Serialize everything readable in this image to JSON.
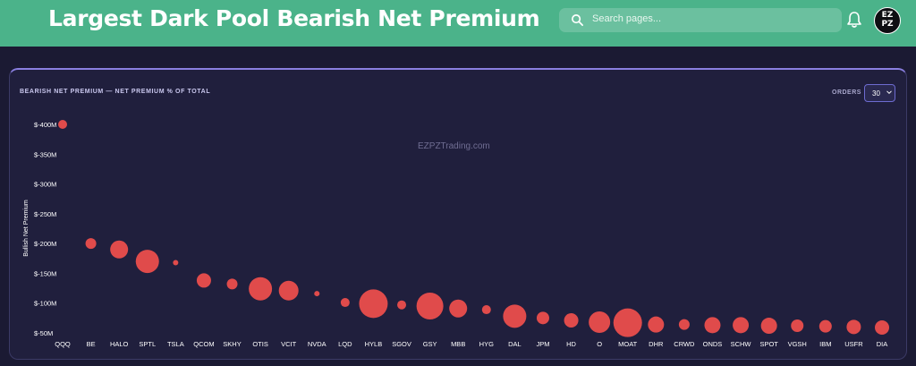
{
  "header": {
    "title": "Largest Dark Pool Bearish Net Premium",
    "search_placeholder": "Search pages...",
    "avatar_text": "EZ PZ"
  },
  "card": {
    "title": "BEARISH NET PREMIUM — NET PREMIUM % OF TOTAL",
    "orders_label": "ORDERS",
    "orders_value": "30",
    "watermark": "EZPZTrading.com"
  },
  "colors": {
    "header": "#4bb38a",
    "background": "#1b1a33",
    "card": "#201f3d",
    "bubble": "#e04b4b"
  },
  "chart_data": {
    "type": "scatter",
    "ylabel": "Bullish Net Premium",
    "y_ticks": [
      "$-400M",
      "$-350M",
      "$-300M",
      "$-250M",
      "$-200M",
      "$-150M",
      "$-100M",
      "$-50M"
    ],
    "y_tick_values": [
      -400,
      -350,
      -300,
      -250,
      -200,
      -150,
      -100,
      -50
    ],
    "ylim": [
      -400,
      -50
    ],
    "categories": [
      "QQQ",
      "BE",
      "HALO",
      "SPTL",
      "TSLA",
      "QCOM",
      "SKHY",
      "OTIS",
      "VCIT",
      "NVDA",
      "LQD",
      "HYLB",
      "SGOV",
      "GSY",
      "MBB",
      "HYG",
      "DAL",
      "JPM",
      "HD",
      "O",
      "MOAT",
      "DHR",
      "CRWD",
      "ONDS",
      "SCHW",
      "SPOT",
      "VGSH",
      "IBM",
      "USFR",
      "DIA"
    ],
    "values": [
      -400,
      -200,
      -190,
      -170,
      -168,
      -138,
      -132,
      -124,
      -121,
      -116,
      -101,
      -99,
      -97,
      -95,
      -91,
      -89,
      -78,
      -75,
      -71,
      -68,
      -67,
      -64,
      -64,
      -63,
      -63,
      -62,
      -62,
      -61,
      -60,
      -59
    ],
    "sizes": [
      5,
      6,
      10,
      13,
      3,
      8,
      6,
      13,
      11,
      3,
      5,
      16,
      5,
      15,
      10,
      5,
      13,
      7,
      8,
      12,
      16,
      9,
      6,
      9,
      9,
      9,
      7,
      7,
      8,
      8
    ],
    "grid": false
  }
}
